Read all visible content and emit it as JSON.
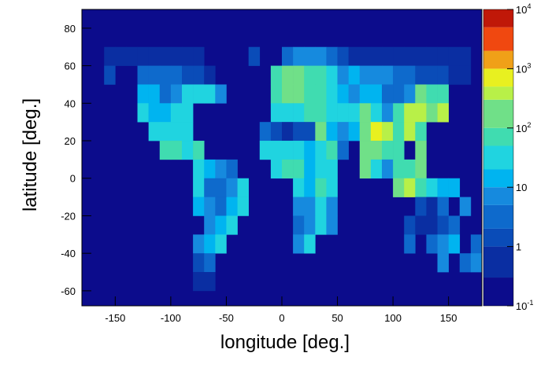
{
  "chart_data": {
    "type": "heatmap",
    "xlabel": "longitude [deg.]",
    "ylabel": "latitude [deg.]",
    "xlim": [
      -180,
      180
    ],
    "ylim": [
      -68,
      90
    ],
    "xticks": [
      -150,
      -100,
      -50,
      0,
      50,
      100,
      150
    ],
    "yticks": [
      -60,
      -40,
      -20,
      0,
      20,
      40,
      60,
      80
    ],
    "background": "#0c0c8c",
    "zlim": [
      0.1,
      10000
    ],
    "zscale": "log",
    "zticks": [
      {
        "value": 0.1,
        "label": "10",
        "sup": "-1"
      },
      1,
      10,
      {
        "value": 100,
        "label": "10",
        "sup": "2"
      },
      {
        "value": 1000,
        "label": "10",
        "sup": "3"
      },
      {
        "value": 10000,
        "label": "10",
        "sup": "4"
      }
    ],
    "levels": [
      0.1,
      0.3,
      1,
      2,
      5,
      10,
      20,
      50,
      100,
      300,
      500,
      1000,
      2000,
      5000,
      10000
    ],
    "colors": [
      "#0c0c8c",
      "#0a2ea2",
      "#0a4cb8",
      "#0e6acc",
      "#168ade",
      "#00b4f0",
      "#20d4e0",
      "#40dcb0",
      "#70e088",
      "#b8f048",
      "#e8f020",
      "#f0a018",
      "#f04810",
      "#c01808"
    ],
    "x": [
      -155,
      -145,
      -135,
      -125,
      -115,
      -105,
      -95,
      -85,
      -75,
      -25,
      5,
      15,
      25,
      35,
      45,
      55,
      65,
      75,
      85,
      95,
      105,
      115,
      125,
      135,
      145,
      155,
      165,
      -155,
      -125,
      -115,
      -105,
      -95,
      -85,
      -75,
      -65,
      -5,
      5,
      15,
      25,
      35,
      45,
      55,
      65,
      75,
      85,
      95,
      105,
      115,
      125,
      135,
      145,
      155,
      165,
      -125,
      -115,
      -105,
      -95,
      -85,
      -75,
      -65,
      -55,
      -5,
      5,
      15,
      25,
      35,
      45,
      55,
      65,
      75,
      85,
      95,
      105,
      115,
      125,
      135,
      145,
      -125,
      -115,
      -105,
      -95,
      -85,
      -5,
      5,
      15,
      25,
      35,
      45,
      55,
      65,
      75,
      85,
      95,
      105,
      115,
      125,
      135,
      145,
      -115,
      -105,
      -95,
      -85,
      -15,
      -5,
      5,
      15,
      25,
      35,
      45,
      55,
      65,
      75,
      85,
      95,
      105,
      115,
      125,
      -105,
      -95,
      -85,
      -75,
      -15,
      -5,
      5,
      15,
      25,
      35,
      45,
      55,
      75,
      85,
      95,
      105,
      125,
      -75,
      -65,
      -55,
      -45,
      -5,
      5,
      15,
      25,
      35,
      45,
      75,
      85,
      95,
      105,
      115,
      125,
      -75,
      -65,
      -55,
      -45,
      -35,
      15,
      25,
      35,
      45,
      105,
      115,
      125,
      135,
      145,
      155,
      -75,
      -65,
      -55,
      -45,
      -35,
      15,
      25,
      35,
      45,
      125,
      135,
      145,
      165,
      -65,
      -55,
      -45,
      15,
      25,
      35,
      45,
      115,
      125,
      135,
      145,
      155,
      -75,
      -65,
      -55,
      15,
      25,
      115,
      135,
      145,
      155,
      175,
      -75,
      -65,
      145,
      165,
      175,
      -75,
      -65
    ],
    "y": [
      65,
      65,
      65,
      65,
      65,
      65,
      65,
      65,
      65,
      65,
      65,
      65,
      65,
      65,
      65,
      65,
      65,
      65,
      65,
      65,
      65,
      65,
      65,
      65,
      65,
      65,
      65,
      55,
      55,
      55,
      55,
      55,
      55,
      55,
      55,
      55,
      55,
      55,
      55,
      55,
      55,
      55,
      55,
      55,
      55,
      55,
      55,
      55,
      55,
      55,
      55,
      55,
      55,
      45,
      45,
      45,
      45,
      45,
      45,
      45,
      45,
      45,
      45,
      45,
      45,
      45,
      45,
      45,
      45,
      45,
      45,
      45,
      45,
      45,
      45,
      45,
      45,
      35,
      35,
      35,
      35,
      35,
      35,
      35,
      35,
      35,
      35,
      35,
      35,
      35,
      35,
      35,
      35,
      35,
      35,
      35,
      35,
      35,
      25,
      25,
      25,
      25,
      25,
      25,
      25,
      25,
      25,
      25,
      25,
      25,
      25,
      25,
      25,
      25,
      25,
      25,
      25,
      15,
      15,
      15,
      15,
      15,
      15,
      15,
      15,
      15,
      15,
      15,
      15,
      15,
      15,
      15,
      15,
      15,
      5,
      5,
      5,
      5,
      5,
      5,
      5,
      5,
      5,
      5,
      5,
      5,
      5,
      5,
      5,
      5,
      -5,
      -5,
      -5,
      -5,
      -5,
      -5,
      -5,
      -5,
      -5,
      -5,
      -5,
      -5,
      -5,
      -5,
      -5,
      -15,
      -15,
      -15,
      -15,
      -15,
      -15,
      -15,
      -15,
      -15,
      -15,
      -15,
      -15,
      -15,
      -25,
      -25,
      -25,
      -25,
      -25,
      -25,
      -25,
      -25,
      -25,
      -25,
      -25,
      -25,
      -35,
      -35,
      -35,
      -35,
      -35,
      -35,
      -35,
      -35,
      -35,
      -35,
      -45,
      -45,
      -45,
      -45,
      -45,
      -55,
      -55
    ],
    "values": [
      0.5,
      0.5,
      0.3,
      0.3,
      0.3,
      0.3,
      0.3,
      0.3,
      0.3,
      1,
      3,
      5,
      5,
      5,
      3,
      1,
      0.3,
      0.3,
      0.3,
      0.3,
      0.3,
      0.3,
      0.3,
      0.3,
      0.3,
      0.3,
      0.3,
      1,
      2,
      3,
      3,
      3,
      1,
      1,
      0.5,
      60,
      150,
      100,
      80,
      50,
      20,
      5,
      10,
      5,
      8,
      5,
      3,
      2,
      1,
      1,
      1,
      0.5,
      0.5,
      10,
      10,
      3,
      5,
      20,
      40,
      30,
      5,
      60,
      100,
      150,
      80,
      50,
      20,
      10,
      5,
      10,
      15,
      3,
      2,
      8,
      100,
      50,
      50,
      20,
      10,
      15,
      30,
      40,
      40,
      20,
      30,
      60,
      50,
      40,
      30,
      20,
      100,
      20,
      5,
      60,
      300,
      300,
      200,
      300,
      20,
      40,
      20,
      30,
      3,
      1,
      0.5,
      1,
      1,
      200,
      10,
      5,
      10,
      200,
      500,
      300,
      50,
      300,
      50,
      60,
      60,
      40,
      60,
      30,
      20,
      20,
      30,
      10,
      20,
      50,
      3,
      200,
      150,
      50,
      80,
      100,
      40,
      10,
      5,
      3,
      30,
      60,
      50,
      10,
      20,
      20,
      100,
      20,
      5,
      60,
      50,
      100,
      20,
      3,
      2,
      5,
      30,
      20,
      10,
      50,
      20,
      200,
      300,
      50,
      20,
      10,
      10,
      10,
      5,
      3,
      10,
      40,
      5,
      5,
      20,
      5,
      1,
      0.5,
      2,
      5,
      5,
      10,
      30,
      3,
      5,
      30,
      5,
      1,
      0.3,
      0.3,
      1,
      3,
      5,
      10,
      20,
      5,
      20,
      3,
      3,
      5,
      10,
      3,
      1,
      2,
      5,
      3,
      5,
      0.5,
      0.5
    ]
  }
}
